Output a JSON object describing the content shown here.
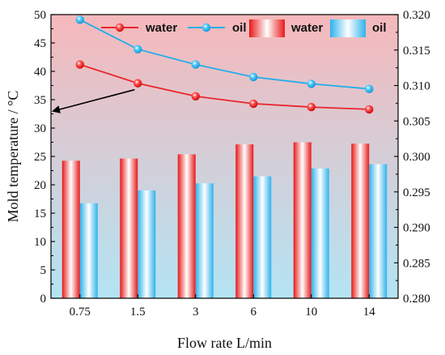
{
  "chart_data": {
    "type": "bar+line",
    "xlabel": "Flow rate L/min",
    "ylabel": "Mold temperature / °C",
    "categories": [
      "0.75",
      "1.5",
      "3",
      "6",
      "10",
      "14"
    ],
    "left_axis": {
      "ylim": [
        0,
        50
      ],
      "ticks": [
        0,
        5,
        10,
        15,
        20,
        25,
        30,
        35,
        40,
        45,
        50
      ],
      "tick_labels": [
        "0",
        "5",
        "10",
        "15",
        "20",
        "25",
        "30",
        "35",
        "40",
        "45",
        "50"
      ]
    },
    "right_axis": {
      "ylim": [
        0.28,
        0.32
      ],
      "ticks": [
        0.28,
        0.285,
        0.29,
        0.295,
        0.3,
        0.305,
        0.31,
        0.315,
        0.32
      ],
      "tick_labels": [
        "0.280",
        "0.285",
        "0.290",
        "0.295",
        "0.300",
        "0.305",
        "0.310",
        "0.315",
        "0.320"
      ]
    },
    "line_series": [
      {
        "name": "water",
        "axis": "left",
        "color": "#e8262b",
        "values": [
          41.2,
          37.9,
          35.6,
          34.3,
          33.7,
          33.3
        ]
      },
      {
        "name": "oil",
        "axis": "left",
        "color": "#22aeea",
        "values": [
          49.1,
          43.9,
          41.2,
          39.0,
          37.8,
          36.9
        ]
      }
    ],
    "bar_series": [
      {
        "name": "water",
        "axis": "right",
        "color": "#f03a3a",
        "values": [
          0.2994,
          0.2997,
          0.3003,
          0.3017,
          0.302,
          0.3018
        ]
      },
      {
        "name": "oil",
        "axis": "right",
        "color": "#3ab8ee",
        "values": [
          0.2934,
          0.2952,
          0.2962,
          0.2972,
          0.2983,
          0.2989
        ]
      }
    ],
    "legend": {
      "placement": "top-right",
      "items": [
        "water",
        "oil",
        "water",
        "oil"
      ]
    },
    "annotation": {
      "type": "arrow",
      "points_to": "left-axis"
    },
    "background": {
      "top_color": "#f6b8bb",
      "bottom_color": "#b3e4f4"
    },
    "grid": false
  }
}
